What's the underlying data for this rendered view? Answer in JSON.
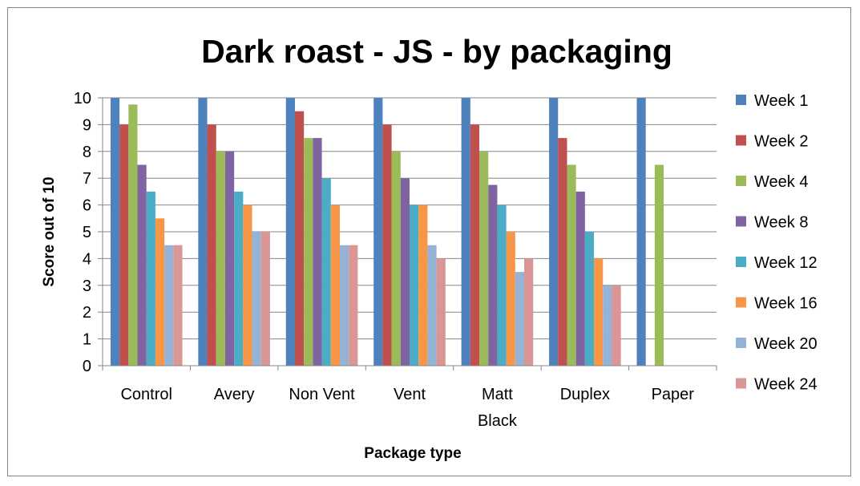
{
  "chart_data": {
    "type": "bar",
    "title": "Dark roast  - JS - by packaging",
    "xlabel": "Package type",
    "ylabel": "Score out of 10",
    "ylim": [
      0,
      10
    ],
    "yticks": [
      0,
      1,
      2,
      3,
      4,
      5,
      6,
      7,
      8,
      9,
      10
    ],
    "grid": true,
    "legend_position": "right",
    "categories": [
      "Control",
      "Avery",
      "Non Vent",
      "Vent",
      "Matt Black",
      "Duplex",
      "Paper"
    ],
    "category_lines": [
      [
        "Control"
      ],
      [
        "Avery"
      ],
      [
        "Non Vent"
      ],
      [
        "Vent"
      ],
      [
        "Matt",
        "Black"
      ],
      [
        "Duplex"
      ],
      [
        "Paper"
      ]
    ],
    "series": [
      {
        "name": "Week 1",
        "color": "#4F81BD",
        "values": [
          10,
          10,
          10,
          10,
          10,
          10,
          10
        ]
      },
      {
        "name": "Week 2",
        "color": "#C0504D",
        "values": [
          9,
          9,
          9.5,
          9,
          9,
          8.5,
          null
        ]
      },
      {
        "name": "Week 4",
        "color": "#9BBB59",
        "values": [
          9.75,
          8,
          8.5,
          8,
          8,
          7.5,
          7.5
        ]
      },
      {
        "name": "Week 8",
        "color": "#8064A2",
        "values": [
          7.5,
          8,
          8.5,
          7,
          6.75,
          6.5,
          null
        ]
      },
      {
        "name": "Week 12",
        "color": "#4BACC6",
        "values": [
          6.5,
          6.5,
          7,
          6,
          6,
          5,
          null
        ]
      },
      {
        "name": "Week 16",
        "color": "#F79646",
        "values": [
          5.5,
          6,
          6,
          6,
          5,
          4,
          null
        ]
      },
      {
        "name": "Week 20",
        "color": "#95B3D7",
        "values": [
          4.5,
          5,
          4.5,
          4.5,
          3.5,
          3,
          null
        ]
      },
      {
        "name": "Week 24",
        "color": "#D99694",
        "values": [
          4.5,
          5,
          4.5,
          4,
          4,
          3,
          null
        ]
      }
    ]
  }
}
